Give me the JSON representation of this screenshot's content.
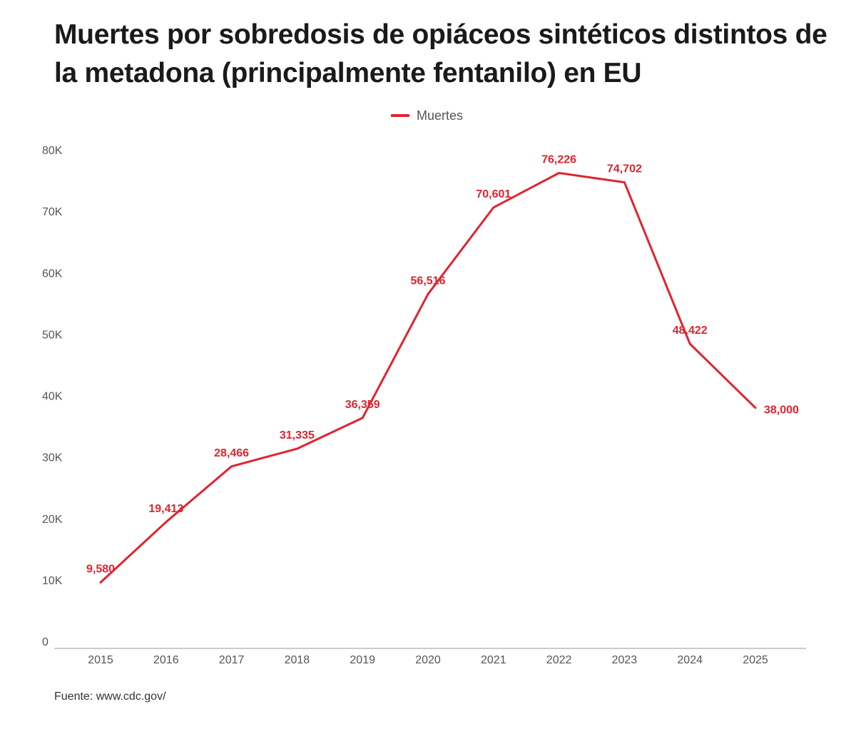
{
  "title": "Muertes por sobredosis de opiáceos sintéticos distintos de la metadona (principalmente fentanilo) en EU",
  "source": "Fuente: www.cdc.gov/",
  "colors": {
    "series": "#e0242f",
    "axis_text": "#555555",
    "title": "#1a1a1a",
    "baseline": "#999999"
  },
  "chart_data": {
    "type": "line",
    "title": "Muertes por sobredosis de opiáceos sintéticos distintos de la metadona (principalmente fentanilo) en EU",
    "xlabel": "",
    "ylabel": "",
    "x": [
      "2015",
      "2016",
      "2017",
      "2018",
      "2019",
      "2020",
      "2021",
      "2022",
      "2023",
      "2024",
      "2025"
    ],
    "series": [
      {
        "name": "Muertes",
        "values": [
          9580,
          19413,
          28466,
          31335,
          36359,
          56516,
          70601,
          76226,
          74702,
          48422,
          38000
        ],
        "labels": [
          "9,580",
          "19,413",
          "28,466",
          "31,335",
          "36,359",
          "56,516",
          "70,601",
          "76,226",
          "74,702",
          "48,422",
          "38,000"
        ]
      }
    ],
    "ylim": [
      0,
      80000
    ],
    "yticks": [
      0,
      10000,
      20000,
      30000,
      40000,
      50000,
      60000,
      70000,
      80000
    ],
    "ytick_labels": [
      "0",
      "10K",
      "20K",
      "30K",
      "40K",
      "50K",
      "60K",
      "70K",
      "80K"
    ],
    "grid": false,
    "legend": "top-center"
  }
}
